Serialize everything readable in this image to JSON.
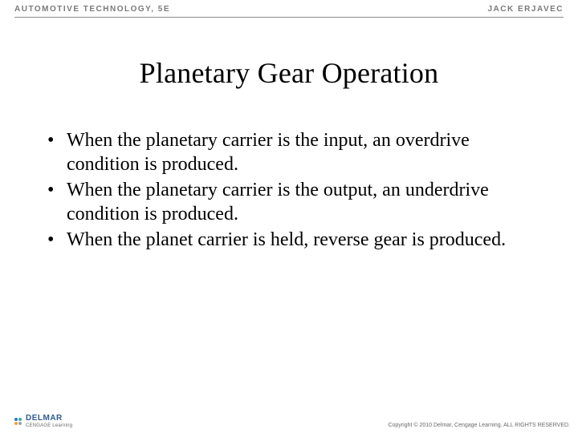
{
  "header": {
    "left": "AUTOMOTIVE TECHNOLOGY, 5E",
    "right": "JACK ERJAVEC"
  },
  "title": "Planetary Gear Operation",
  "bullets": [
    "When the planetary carrier is the input, an overdrive condition is produced.",
    "When the planetary carrier is the output, an underdrive condition is produced.",
    "When the planet carrier is held, reverse gear is produced."
  ],
  "footer": {
    "brand": "DELMAR",
    "brand_sub": "CENGAGE Learning",
    "copyright": "Copyright © 2010 Delmar, Cengage Learning. ALL RIGHTS RESERVED."
  },
  "colors": {
    "logo_dot_blue": "#2e78b5",
    "logo_dot_teal": "#3faaa0",
    "logo_dot_orange": "#e8a23c",
    "logo_dot_gray": "#9aa0a6"
  }
}
